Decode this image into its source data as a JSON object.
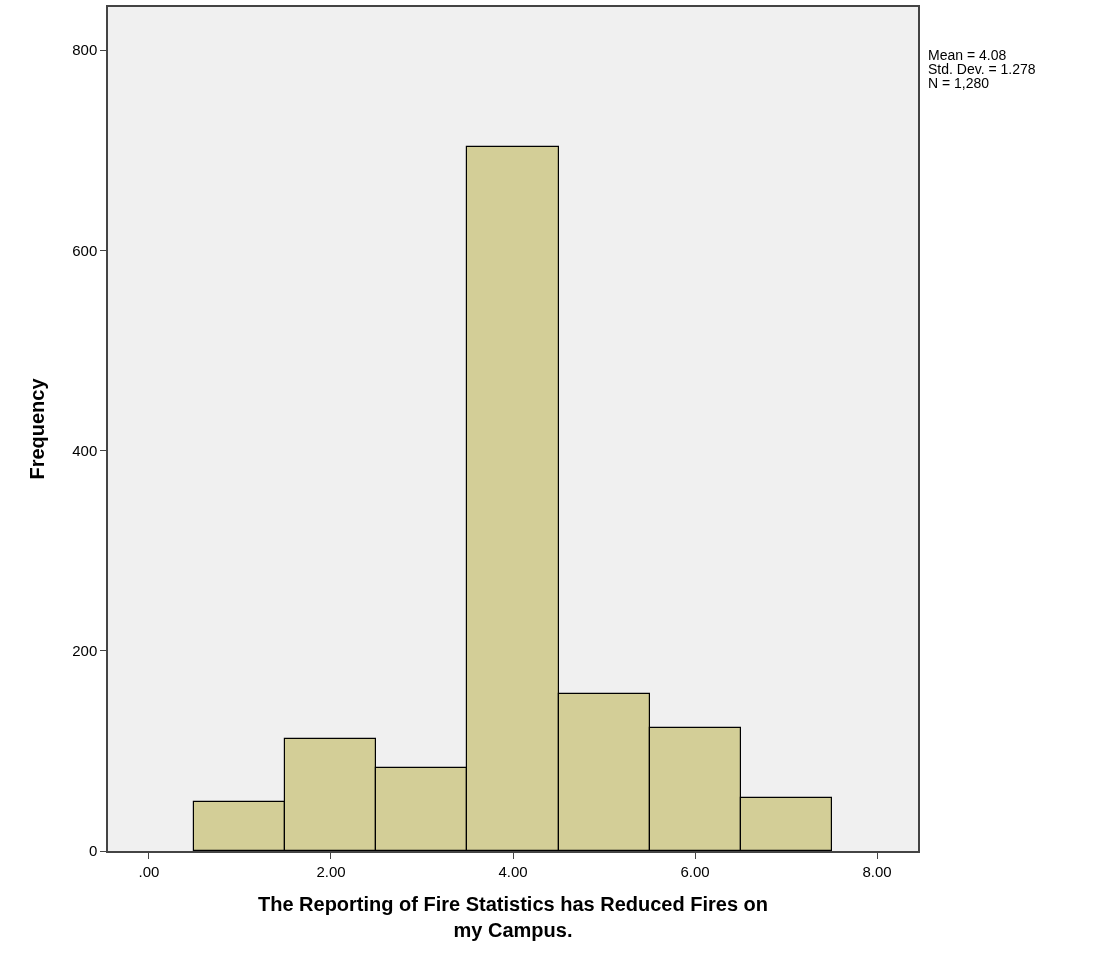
{
  "chart_data": {
    "type": "histogram",
    "xlabel": "The Reporting of Fire Statistics has Reduced Fires on my Campus.",
    "ylabel": "Frequency",
    "bins": [
      0.5,
      1.5,
      2.5,
      3.5,
      4.5,
      5.5,
      6.5,
      7.5
    ],
    "values": [
      49,
      112,
      83,
      703,
      157,
      123,
      53
    ],
    "color": "#d3ce97",
    "xlim": [
      -0.45,
      8.45
    ],
    "ylim": [
      0,
      843
    ],
    "xticks": [
      {
        "value": 0,
        "label": ".00"
      },
      {
        "value": 2,
        "label": "2.00"
      },
      {
        "value": 4,
        "label": "4.00"
      },
      {
        "value": 6,
        "label": "6.00"
      },
      {
        "value": 8,
        "label": "8.00"
      }
    ],
    "yticks": [
      0,
      200,
      400,
      600,
      800
    ],
    "annotations": [
      "Mean = 4.08",
      "Std. Dev. = 1.278",
      "N = 1,280"
    ]
  }
}
